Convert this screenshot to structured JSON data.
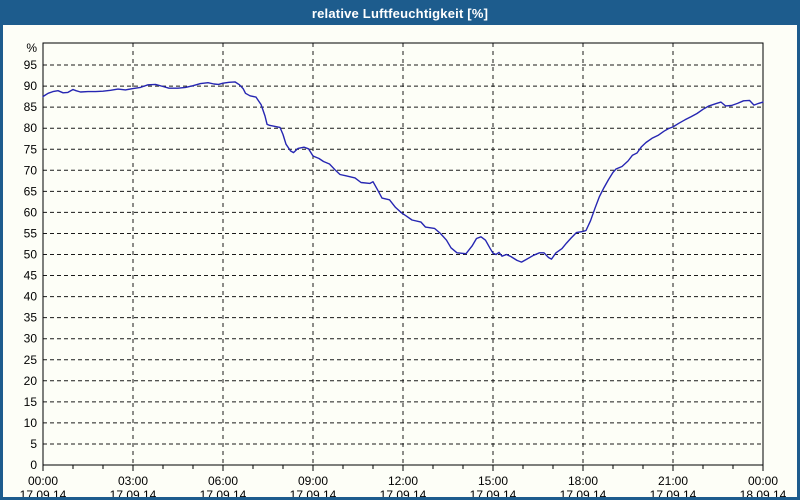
{
  "window": {
    "title": "relative Luftfeuchtigkeit [%]"
  },
  "colors": {
    "titlebar_bg": "#1d5c8d",
    "window_border": "#1d5c8d",
    "background": "#fdfef7",
    "line": "#2626b2",
    "grid": "#1a1a1a",
    "axis": "#000000",
    "tick_text": "#000000",
    "title_text": "#ffffff"
  },
  "chart_data": {
    "type": "line",
    "title": "relative Luftfeuchtigkeit [%]",
    "xlabel": "",
    "ylabel": "%",
    "ylim": [
      0,
      100
    ],
    "yticks": [
      0,
      5,
      10,
      15,
      20,
      25,
      30,
      35,
      40,
      45,
      50,
      55,
      60,
      65,
      70,
      75,
      80,
      85,
      90,
      95
    ],
    "xlim_hours": [
      0,
      24
    ],
    "grid": "dashed",
    "legend_position": "none",
    "xticks": [
      {
        "hour": 0,
        "time": "00:00",
        "date": "17.09.14"
      },
      {
        "hour": 3,
        "time": "03:00",
        "date": "17.09.14"
      },
      {
        "hour": 6,
        "time": "06:00",
        "date": "17.09.14"
      },
      {
        "hour": 9,
        "time": "09:00",
        "date": "17.09.14"
      },
      {
        "hour": 12,
        "time": "12:00",
        "date": "17.09.14"
      },
      {
        "hour": 15,
        "time": "15:00",
        "date": "17.09.14"
      },
      {
        "hour": 18,
        "time": "18:00",
        "date": "17.09.14"
      },
      {
        "hour": 21,
        "time": "21:00",
        "date": "17.09.14"
      },
      {
        "hour": 24,
        "time": "00:00",
        "date": "18.09.14"
      }
    ],
    "minor_xtick_every_hours": 1,
    "series": [
      {
        "name": "relative Luftfeuchtigkeit",
        "unit": "%",
        "points": [
          [
            0,
            87.5
          ],
          [
            0.08,
            87.9
          ],
          [
            0.17,
            88.3
          ],
          [
            0.33,
            88.7
          ],
          [
            0.5,
            88.9
          ],
          [
            0.67,
            88.4
          ],
          [
            0.83,
            88.5
          ],
          [
            1,
            89.2
          ],
          [
            1.1,
            88.9
          ],
          [
            1.25,
            88.6
          ],
          [
            1.5,
            88.7
          ],
          [
            1.75,
            88.7
          ],
          [
            2,
            88.8
          ],
          [
            2.25,
            89
          ],
          [
            2.5,
            89.3
          ],
          [
            2.75,
            89.1
          ],
          [
            3,
            89.4
          ],
          [
            3.25,
            89.7
          ],
          [
            3.5,
            90.3
          ],
          [
            3.75,
            90.4
          ],
          [
            4,
            89.9
          ],
          [
            4.2,
            89.5
          ],
          [
            4.5,
            89.5
          ],
          [
            4.75,
            89.7
          ],
          [
            5,
            90.1
          ],
          [
            5.25,
            90.6
          ],
          [
            5.5,
            90.8
          ],
          [
            5.7,
            90.5
          ],
          [
            5.85,
            90.4
          ],
          [
            6,
            90.7
          ],
          [
            6.2,
            90.9
          ],
          [
            6.4,
            91
          ],
          [
            6.55,
            90.3
          ],
          [
            6.67,
            89.4
          ],
          [
            6.75,
            88.3
          ],
          [
            6.9,
            87.7
          ],
          [
            7.1,
            87.4
          ],
          [
            7.27,
            85.6
          ],
          [
            7.4,
            82.9
          ],
          [
            7.47,
            80.9
          ],
          [
            7.55,
            80.7
          ],
          [
            7.9,
            80.2
          ],
          [
            8,
            78.5
          ],
          [
            8.1,
            76.2
          ],
          [
            8.25,
            74.6
          ],
          [
            8.35,
            74.2
          ],
          [
            8.5,
            75.2
          ],
          [
            8.7,
            75.5
          ],
          [
            8.85,
            75.1
          ],
          [
            9,
            73.4
          ],
          [
            9.2,
            72.8
          ],
          [
            9.35,
            72.1
          ],
          [
            9.55,
            71.5
          ],
          [
            9.75,
            70
          ],
          [
            9.9,
            69
          ],
          [
            10.1,
            68.7
          ],
          [
            10.4,
            68.2
          ],
          [
            10.6,
            67.1
          ],
          [
            10.9,
            66.9
          ],
          [
            11,
            67.3
          ],
          [
            11.15,
            65.4
          ],
          [
            11.3,
            63.4
          ],
          [
            11.55,
            63
          ],
          [
            11.75,
            61.2
          ],
          [
            11.95,
            59.9
          ],
          [
            12.1,
            59.2
          ],
          [
            12.3,
            58.2
          ],
          [
            12.6,
            57.7
          ],
          [
            12.75,
            56.5
          ],
          [
            13.05,
            56.2
          ],
          [
            13.25,
            55
          ],
          [
            13.45,
            53.4
          ],
          [
            13.6,
            51.6
          ],
          [
            13.8,
            50.4
          ],
          [
            14.1,
            50.2
          ],
          [
            14.3,
            52
          ],
          [
            14.45,
            53.8
          ],
          [
            14.6,
            54.2
          ],
          [
            14.75,
            53.4
          ],
          [
            14.9,
            51.5
          ],
          [
            15,
            50.3
          ],
          [
            15.1,
            50
          ],
          [
            15.2,
            50.5
          ],
          [
            15.3,
            49.6
          ],
          [
            15.45,
            50
          ],
          [
            15.6,
            49.5
          ],
          [
            15.8,
            48.6
          ],
          [
            15.95,
            48.2
          ],
          [
            16.1,
            48.8
          ],
          [
            16.35,
            49.8
          ],
          [
            16.55,
            50.4
          ],
          [
            16.7,
            50.4
          ],
          [
            16.85,
            49.3
          ],
          [
            16.95,
            48.9
          ],
          [
            17.1,
            50.4
          ],
          [
            17.3,
            51.4
          ],
          [
            17.45,
            52.7
          ],
          [
            17.6,
            53.9
          ],
          [
            17.78,
            55.2
          ],
          [
            18,
            55.5
          ],
          [
            18.1,
            55.7
          ],
          [
            18.25,
            58
          ],
          [
            18.4,
            61
          ],
          [
            18.55,
            63.8
          ],
          [
            18.7,
            65.9
          ],
          [
            18.85,
            67.8
          ],
          [
            19,
            69.5
          ],
          [
            19.1,
            70.3
          ],
          [
            19.3,
            70.9
          ],
          [
            19.5,
            72.2
          ],
          [
            19.65,
            73.6
          ],
          [
            19.8,
            74.1
          ],
          [
            19.95,
            75.6
          ],
          [
            20.1,
            76.6
          ],
          [
            20.3,
            77.6
          ],
          [
            20.5,
            78.3
          ],
          [
            20.7,
            79.3
          ],
          [
            20.85,
            79.9
          ],
          [
            21,
            80.3
          ],
          [
            21.2,
            81.2
          ],
          [
            21.4,
            82
          ],
          [
            21.6,
            82.7
          ],
          [
            21.8,
            83.5
          ],
          [
            22,
            84.5
          ],
          [
            22.2,
            85.3
          ],
          [
            22.45,
            85.9
          ],
          [
            22.6,
            86.2
          ],
          [
            22.75,
            85.3
          ],
          [
            22.95,
            85.4
          ],
          [
            23.15,
            85.9
          ],
          [
            23.35,
            86.5
          ],
          [
            23.55,
            86.6
          ],
          [
            23.7,
            85.5
          ],
          [
            23.85,
            85.9
          ],
          [
            24,
            86.2
          ]
        ]
      }
    ]
  }
}
